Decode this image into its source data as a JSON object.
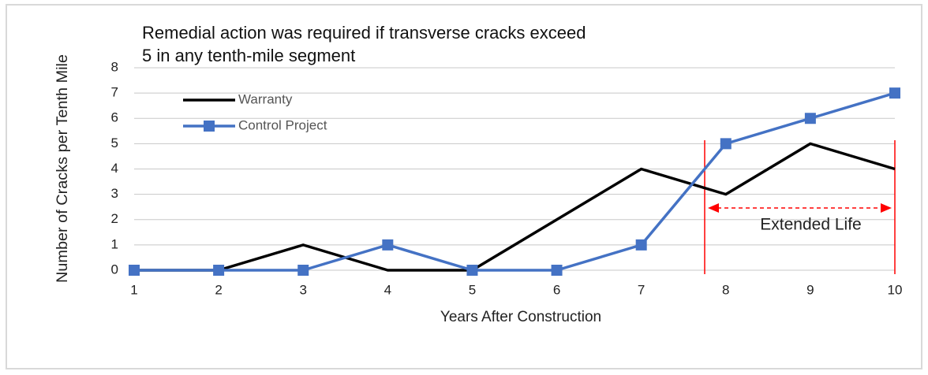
{
  "chart_data": {
    "type": "line",
    "title": [
      "Remedial action was required if transverse cracks exceed",
      "5 in any tenth-mile segment"
    ],
    "x_label": "Years After Construction",
    "y_label": "Number of Cracks per Tenth Mile",
    "x": [
      1,
      2,
      3,
      4,
      5,
      6,
      7,
      8,
      9,
      10
    ],
    "series": [
      {
        "name": "Warranty",
        "color": "#000000",
        "marker": false,
        "values": [
          0,
          0,
          1,
          0,
          0,
          2,
          4,
          3,
          5,
          4
        ]
      },
      {
        "name": "Control Project",
        "color": "#4472c4",
        "marker": true,
        "values": [
          0,
          0,
          0,
          1,
          0,
          0,
          1,
          5,
          6,
          7
        ]
      }
    ],
    "xlim": [
      1,
      10
    ],
    "xticks": [
      1,
      2,
      3,
      4,
      5,
      6,
      7,
      8,
      9,
      10
    ],
    "ylim": [
      0,
      8
    ],
    "yticks": [
      0,
      1,
      2,
      3,
      4,
      5,
      6,
      7,
      8
    ],
    "grid": true,
    "legend": "upper left",
    "annotation": {
      "text": "Extended Life",
      "span": [
        7.75,
        10
      ],
      "color": "#ff0000"
    }
  }
}
